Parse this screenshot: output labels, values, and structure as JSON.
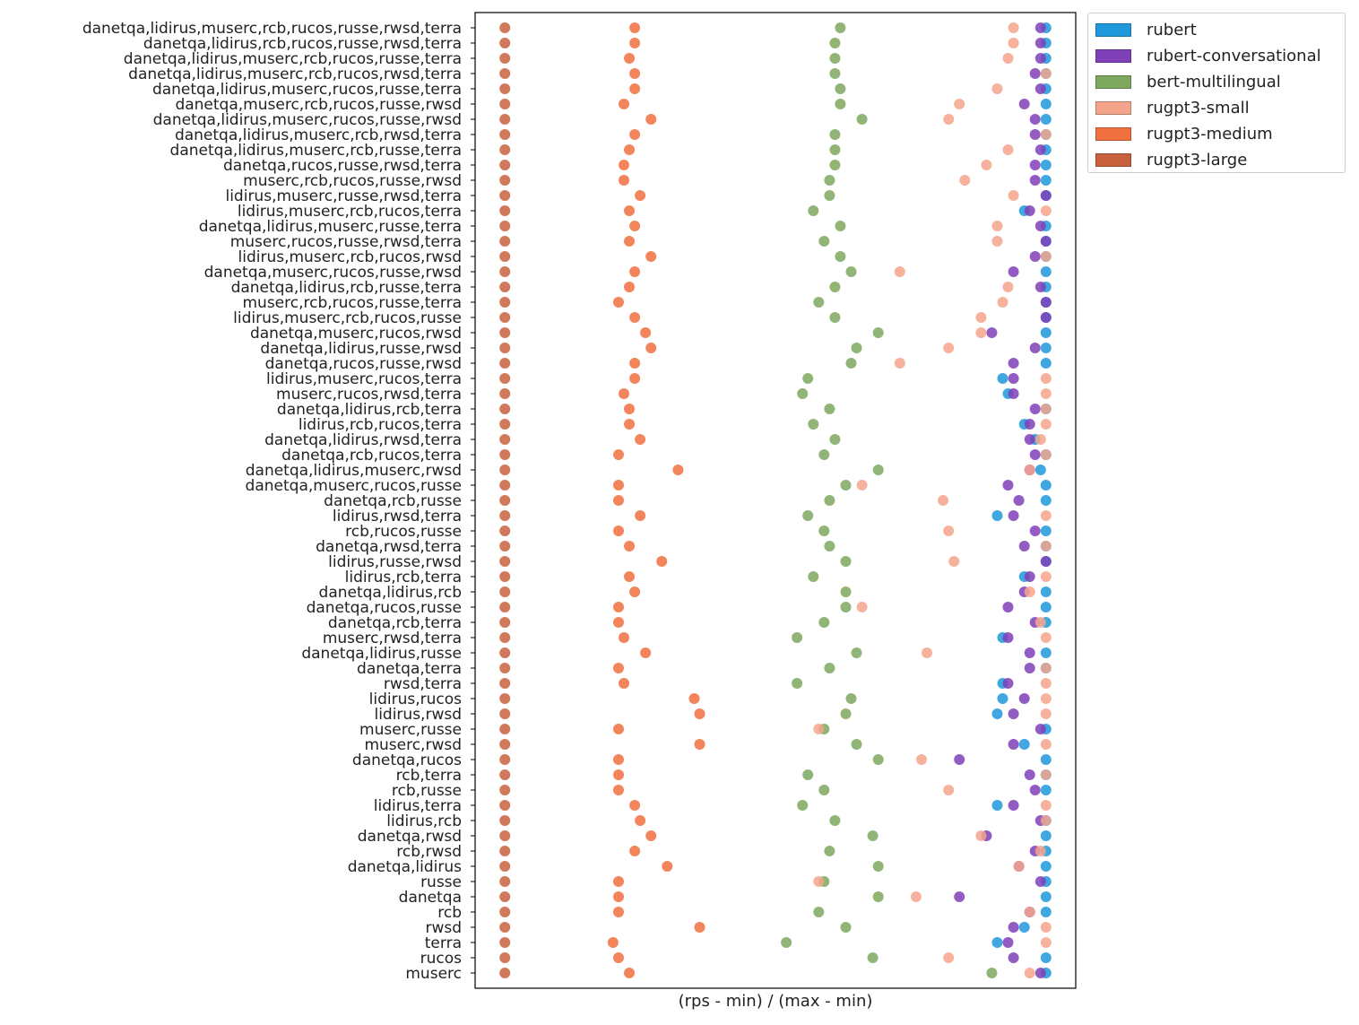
{
  "chart_data": {
    "type": "scatter",
    "title": "",
    "xlabel": "(rps - min) / (max - min)",
    "ylabel": "",
    "grid": false,
    "legend_placement": "outside top-right",
    "xlim": [
      -0.055,
      1.055
    ],
    "categories": [
      "danetqa,lidirus,muserc,rcb,rucos,russe,rwsd,terra",
      "danetqa,lidirus,rcb,rucos,russe,rwsd,terra",
      "danetqa,lidirus,muserc,rcb,rucos,russe,terra",
      "danetqa,lidirus,muserc,rcb,rucos,rwsd,terra",
      "danetqa,lidirus,muserc,rucos,russe,terra",
      "danetqa,muserc,rcb,rucos,russe,rwsd",
      "danetqa,lidirus,muserc,rucos,russe,rwsd",
      "danetqa,lidirus,muserc,rcb,rwsd,terra",
      "danetqa,lidirus,muserc,rcb,russe,terra",
      "danetqa,rucos,russe,rwsd,terra",
      "muserc,rcb,rucos,russe,rwsd",
      "lidirus,muserc,russe,rwsd,terra",
      "lidirus,muserc,rcb,rucos,terra",
      "danetqa,lidirus,muserc,russe,terra",
      "muserc,rucos,russe,rwsd,terra",
      "lidirus,muserc,rcb,rucos,rwsd",
      "danetqa,muserc,rucos,russe,rwsd",
      "danetqa,lidirus,rcb,russe,terra",
      "muserc,rcb,rucos,russe,terra",
      "lidirus,muserc,rcb,rucos,russe",
      "danetqa,muserc,rucos,rwsd",
      "danetqa,lidirus,russe,rwsd",
      "danetqa,rucos,russe,rwsd",
      "lidirus,muserc,rucos,terra",
      "muserc,rucos,rwsd,terra",
      "danetqa,lidirus,rcb,terra",
      "lidirus,rcb,rucos,terra",
      "danetqa,lidirus,rwsd,terra",
      "danetqa,rcb,rucos,terra",
      "danetqa,lidirus,muserc,rwsd",
      "danetqa,muserc,rucos,russe",
      "danetqa,rcb,russe",
      "lidirus,rwsd,terra",
      "rcb,rucos,russe",
      "danetqa,rwsd,terra",
      "lidirus,russe,rwsd",
      "lidirus,rcb,terra",
      "danetqa,lidirus,rcb",
      "danetqa,rucos,russe",
      "danetqa,rcb,terra",
      "muserc,rwsd,terra",
      "danetqa,lidirus,russe",
      "danetqa,terra",
      "rwsd,terra",
      "lidirus,rucos",
      "lidirus,rwsd",
      "muserc,russe",
      "muserc,rwsd",
      "danetqa,rucos",
      "rcb,terra",
      "rcb,russe",
      "lidirus,terra",
      "lidirus,rcb",
      "danetqa,rwsd",
      "rcb,rwsd",
      "danetqa,lidirus",
      "russe",
      "danetqa",
      "rcb",
      "rwsd",
      "terra",
      "rucos",
      "muserc"
    ],
    "series": [
      {
        "name": "rubert",
        "color": "#1f98dc",
        "values": [
          1.0,
          1.0,
          1.0,
          1.0,
          1.0,
          1.0,
          1.0,
          1.0,
          1.0,
          1.0,
          1.0,
          1.0,
          0.96,
          1.0,
          1.0,
          1.0,
          1.0,
          1.0,
          1.0,
          1.0,
          1.0,
          1.0,
          1.0,
          0.92,
          0.93,
          1.0,
          0.96,
          0.98,
          1.0,
          0.99,
          1.0,
          1.0,
          0.91,
          1.0,
          1.0,
          1.0,
          0.96,
          1.0,
          1.0,
          1.0,
          0.92,
          1.0,
          1.0,
          0.92,
          0.92,
          0.91,
          1.0,
          0.96,
          1.0,
          1.0,
          1.0,
          0.91,
          1.0,
          1.0,
          1.0,
          1.0,
          1.0,
          1.0,
          1.0,
          0.96,
          0.91,
          1.0,
          1.0
        ]
      },
      {
        "name": "rubert-conversational",
        "color": "#8040b8",
        "values": [
          0.99,
          0.99,
          0.99,
          0.98,
          0.99,
          0.96,
          0.98,
          0.98,
          0.99,
          0.98,
          0.98,
          1.0,
          0.97,
          0.99,
          1.0,
          0.98,
          0.94,
          0.99,
          1.0,
          1.0,
          0.9,
          0.98,
          0.94,
          0.94,
          0.94,
          0.98,
          0.97,
          0.97,
          0.98,
          0.97,
          0.93,
          0.95,
          0.94,
          0.98,
          0.96,
          1.0,
          0.97,
          0.96,
          0.93,
          0.98,
          0.93,
          0.97,
          0.97,
          0.93,
          0.96,
          0.94,
          0.99,
          0.94,
          0.84,
          0.97,
          0.98,
          0.94,
          0.99,
          0.89,
          0.98,
          0.95,
          0.99,
          0.84,
          0.97,
          0.94,
          0.93,
          0.94,
          0.99
        ]
      },
      {
        "name": "bert-multilingual",
        "color": "#7ea85e",
        "values": [
          0.62,
          0.61,
          0.61,
          0.61,
          0.62,
          0.62,
          0.66,
          0.61,
          0.61,
          0.61,
          0.6,
          0.6,
          0.57,
          0.62,
          0.59,
          0.62,
          0.64,
          0.61,
          0.58,
          0.61,
          0.69,
          0.65,
          0.64,
          0.56,
          0.55,
          0.6,
          0.57,
          0.61,
          0.59,
          0.69,
          0.63,
          0.6,
          0.56,
          0.59,
          0.6,
          0.63,
          0.57,
          0.63,
          0.63,
          0.59,
          0.54,
          0.65,
          0.6,
          0.54,
          0.64,
          0.63,
          0.59,
          0.65,
          0.69,
          0.56,
          0.59,
          0.55,
          0.61,
          0.68,
          0.6,
          0.69,
          0.59,
          0.69,
          0.58,
          0.63,
          0.52,
          0.68,
          0.9
        ]
      },
      {
        "name": "rugpt3-small",
        "color": "#f5a48c",
        "values": [
          0.94,
          0.94,
          0.93,
          1.0,
          0.91,
          0.84,
          0.82,
          1.0,
          0.93,
          0.89,
          0.85,
          0.94,
          1.0,
          0.91,
          0.91,
          1.0,
          0.73,
          0.93,
          0.92,
          0.88,
          0.88,
          0.82,
          0.73,
          1.0,
          1.0,
          1.0,
          1.0,
          0.99,
          1.0,
          0.97,
          0.66,
          0.81,
          1.0,
          0.82,
          1.0,
          0.83,
          1.0,
          0.97,
          0.66,
          0.99,
          1.0,
          0.78,
          1.0,
          1.0,
          1.0,
          1.0,
          0.58,
          1.0,
          0.77,
          1.0,
          0.82,
          1.0,
          1.0,
          0.88,
          0.99,
          0.95,
          0.58,
          0.76,
          0.97,
          1.0,
          1.0,
          0.82,
          0.97
        ]
      },
      {
        "name": "rugpt3-medium",
        "color": "#f07040",
        "values": [
          0.24,
          0.24,
          0.23,
          0.24,
          0.24,
          0.22,
          0.27,
          0.24,
          0.23,
          0.22,
          0.22,
          0.25,
          0.23,
          0.24,
          0.23,
          0.27,
          0.24,
          0.23,
          0.21,
          0.24,
          0.26,
          0.27,
          0.24,
          0.24,
          0.22,
          0.23,
          0.23,
          0.25,
          0.21,
          0.32,
          0.21,
          0.21,
          0.25,
          0.21,
          0.23,
          0.29,
          0.23,
          0.24,
          0.21,
          0.21,
          0.22,
          0.26,
          0.21,
          0.22,
          0.35,
          0.36,
          0.21,
          0.36,
          0.21,
          0.21,
          0.21,
          0.24,
          0.25,
          0.27,
          0.24,
          0.3,
          0.21,
          0.21,
          0.21,
          0.36,
          0.2,
          0.21,
          0.23
        ]
      },
      {
        "name": "rugpt3-large",
        "color": "#c8623e",
        "values": [
          0,
          0,
          0,
          0,
          0,
          0,
          0,
          0,
          0,
          0,
          0,
          0,
          0,
          0,
          0,
          0,
          0,
          0,
          0,
          0,
          0,
          0,
          0,
          0,
          0,
          0,
          0,
          0,
          0,
          0,
          0,
          0,
          0,
          0,
          0,
          0,
          0,
          0,
          0,
          0,
          0,
          0,
          0,
          0,
          0,
          0,
          0,
          0,
          0,
          0,
          0,
          0,
          0,
          0,
          0,
          0,
          0,
          0,
          0,
          0,
          0,
          0,
          0
        ]
      }
    ]
  }
}
